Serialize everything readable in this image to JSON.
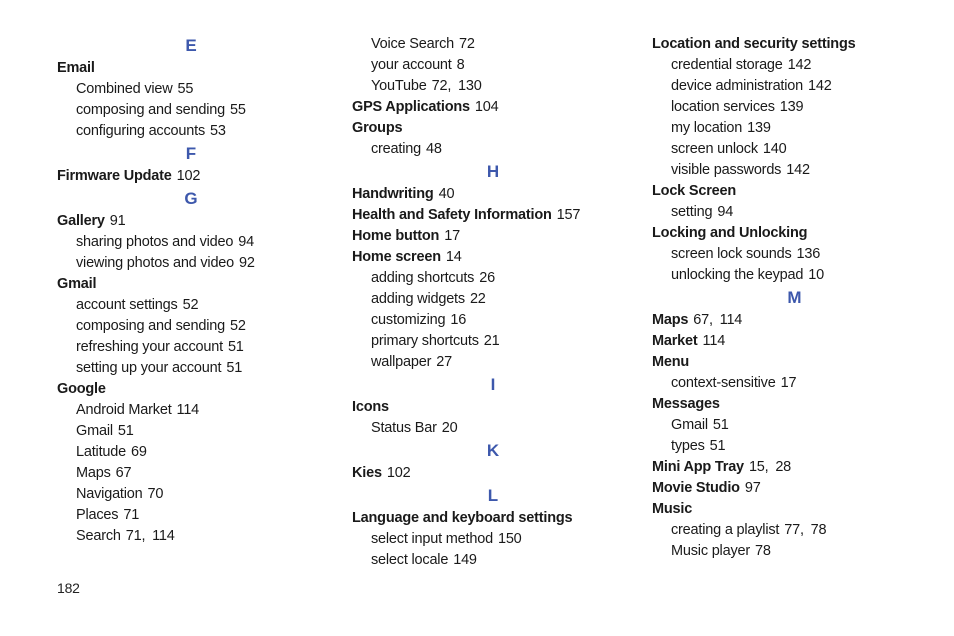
{
  "page": {
    "number": "182",
    "letter_color": "#3d58ac"
  },
  "columns": [
    {
      "items": [
        {
          "type": "letter",
          "label": "E"
        },
        {
          "type": "entry",
          "label": "Email",
          "pages": ""
        },
        {
          "type": "sub",
          "label": "Combined view",
          "pages": "55"
        },
        {
          "type": "sub",
          "label": "composing and sending",
          "pages": "55"
        },
        {
          "type": "sub",
          "label": "configuring accounts",
          "pages": "53"
        },
        {
          "type": "letter",
          "label": "F"
        },
        {
          "type": "entry",
          "label": "Firmware Update",
          "pages": "102"
        },
        {
          "type": "letter",
          "label": "G"
        },
        {
          "type": "entry",
          "label": "Gallery",
          "pages": "91"
        },
        {
          "type": "sub",
          "label": "sharing photos and video",
          "pages": "94"
        },
        {
          "type": "sub",
          "label": "viewing photos and video",
          "pages": "92"
        },
        {
          "type": "entry",
          "label": "Gmail",
          "pages": ""
        },
        {
          "type": "sub",
          "label": "account settings",
          "pages": "52"
        },
        {
          "type": "sub",
          "label": "composing and sending",
          "pages": "52"
        },
        {
          "type": "sub",
          "label": "refreshing your account",
          "pages": "51"
        },
        {
          "type": "sub",
          "label": "setting up your account",
          "pages": "51"
        },
        {
          "type": "entry",
          "label": "Google",
          "pages": ""
        },
        {
          "type": "sub",
          "label": "Android Market",
          "pages": "114"
        },
        {
          "type": "sub",
          "label": "Gmail",
          "pages": "51"
        },
        {
          "type": "sub",
          "label": "Latitude",
          "pages": "69"
        },
        {
          "type": "sub",
          "label": "Maps",
          "pages": "67"
        },
        {
          "type": "sub",
          "label": "Navigation",
          "pages": "70"
        },
        {
          "type": "sub",
          "label": "Places",
          "pages": "71"
        },
        {
          "type": "sub",
          "label": "Search",
          "pages": "71, 114"
        }
      ]
    },
    {
      "items": [
        {
          "type": "sub",
          "label": "Voice Search",
          "pages": "72"
        },
        {
          "type": "sub",
          "label": "your account",
          "pages": "8"
        },
        {
          "type": "sub",
          "label": "YouTube",
          "pages": "72, 130"
        },
        {
          "type": "entry",
          "label": "GPS Applications",
          "pages": "104"
        },
        {
          "type": "entry",
          "label": "Groups",
          "pages": ""
        },
        {
          "type": "sub",
          "label": "creating",
          "pages": "48"
        },
        {
          "type": "letter",
          "label": "H"
        },
        {
          "type": "entry",
          "label": "Handwriting",
          "pages": "40"
        },
        {
          "type": "entry",
          "label": "Health and Safety Information",
          "pages": "157"
        },
        {
          "type": "entry",
          "label": "Home button",
          "pages": "17"
        },
        {
          "type": "entry",
          "label": "Home screen",
          "pages": "14"
        },
        {
          "type": "sub",
          "label": "adding shortcuts",
          "pages": "26"
        },
        {
          "type": "sub",
          "label": "adding widgets",
          "pages": "22"
        },
        {
          "type": "sub",
          "label": "customizing",
          "pages": "16"
        },
        {
          "type": "sub",
          "label": "primary shortcuts",
          "pages": "21"
        },
        {
          "type": "sub",
          "label": "wallpaper",
          "pages": "27"
        },
        {
          "type": "letter",
          "label": "I"
        },
        {
          "type": "entry",
          "label": "Icons",
          "pages": ""
        },
        {
          "type": "sub",
          "label": "Status Bar",
          "pages": "20"
        },
        {
          "type": "letter",
          "label": "K"
        },
        {
          "type": "entry",
          "label": "Kies",
          "pages": "102"
        },
        {
          "type": "letter",
          "label": "L"
        },
        {
          "type": "entry",
          "label": "Language and keyboard settings",
          "pages": ""
        },
        {
          "type": "sub",
          "label": "select input method",
          "pages": "150"
        },
        {
          "type": "sub",
          "label": "select locale",
          "pages": "149"
        }
      ]
    },
    {
      "items": [
        {
          "type": "entry",
          "label": "Location and security settings",
          "pages": ""
        },
        {
          "type": "sub",
          "label": "credential storage",
          "pages": "142"
        },
        {
          "type": "sub",
          "label": "device administration",
          "pages": "142"
        },
        {
          "type": "sub",
          "label": "location services",
          "pages": "139"
        },
        {
          "type": "sub",
          "label": "my location",
          "pages": "139"
        },
        {
          "type": "sub",
          "label": "screen unlock",
          "pages": "140"
        },
        {
          "type": "sub",
          "label": "visible passwords",
          "pages": "142"
        },
        {
          "type": "entry",
          "label": "Lock Screen",
          "pages": ""
        },
        {
          "type": "sub",
          "label": "setting",
          "pages": "94"
        },
        {
          "type": "entry",
          "label": "Locking and Unlocking",
          "pages": ""
        },
        {
          "type": "sub",
          "label": "screen lock sounds",
          "pages": "136"
        },
        {
          "type": "sub",
          "label": "unlocking the keypad",
          "pages": "10"
        },
        {
          "type": "letter",
          "label": "M"
        },
        {
          "type": "entry",
          "label": "Maps",
          "pages": "67, 114"
        },
        {
          "type": "entry",
          "label": "Market",
          "pages": "114"
        },
        {
          "type": "entry",
          "label": "Menu",
          "pages": ""
        },
        {
          "type": "sub",
          "label": "context-sensitive",
          "pages": "17"
        },
        {
          "type": "entry",
          "label": "Messages",
          "pages": ""
        },
        {
          "type": "sub",
          "label": "Gmail",
          "pages": "51"
        },
        {
          "type": "sub",
          "label": "types",
          "pages": "51"
        },
        {
          "type": "entry",
          "label": "Mini App Tray",
          "pages": "15, 28"
        },
        {
          "type": "entry",
          "label": "Movie Studio",
          "pages": "97"
        },
        {
          "type": "entry",
          "label": "Music",
          "pages": ""
        },
        {
          "type": "sub",
          "label": "creating a playlist",
          "pages": "77, 78"
        },
        {
          "type": "sub",
          "label": "Music player",
          "pages": "78"
        }
      ]
    }
  ]
}
